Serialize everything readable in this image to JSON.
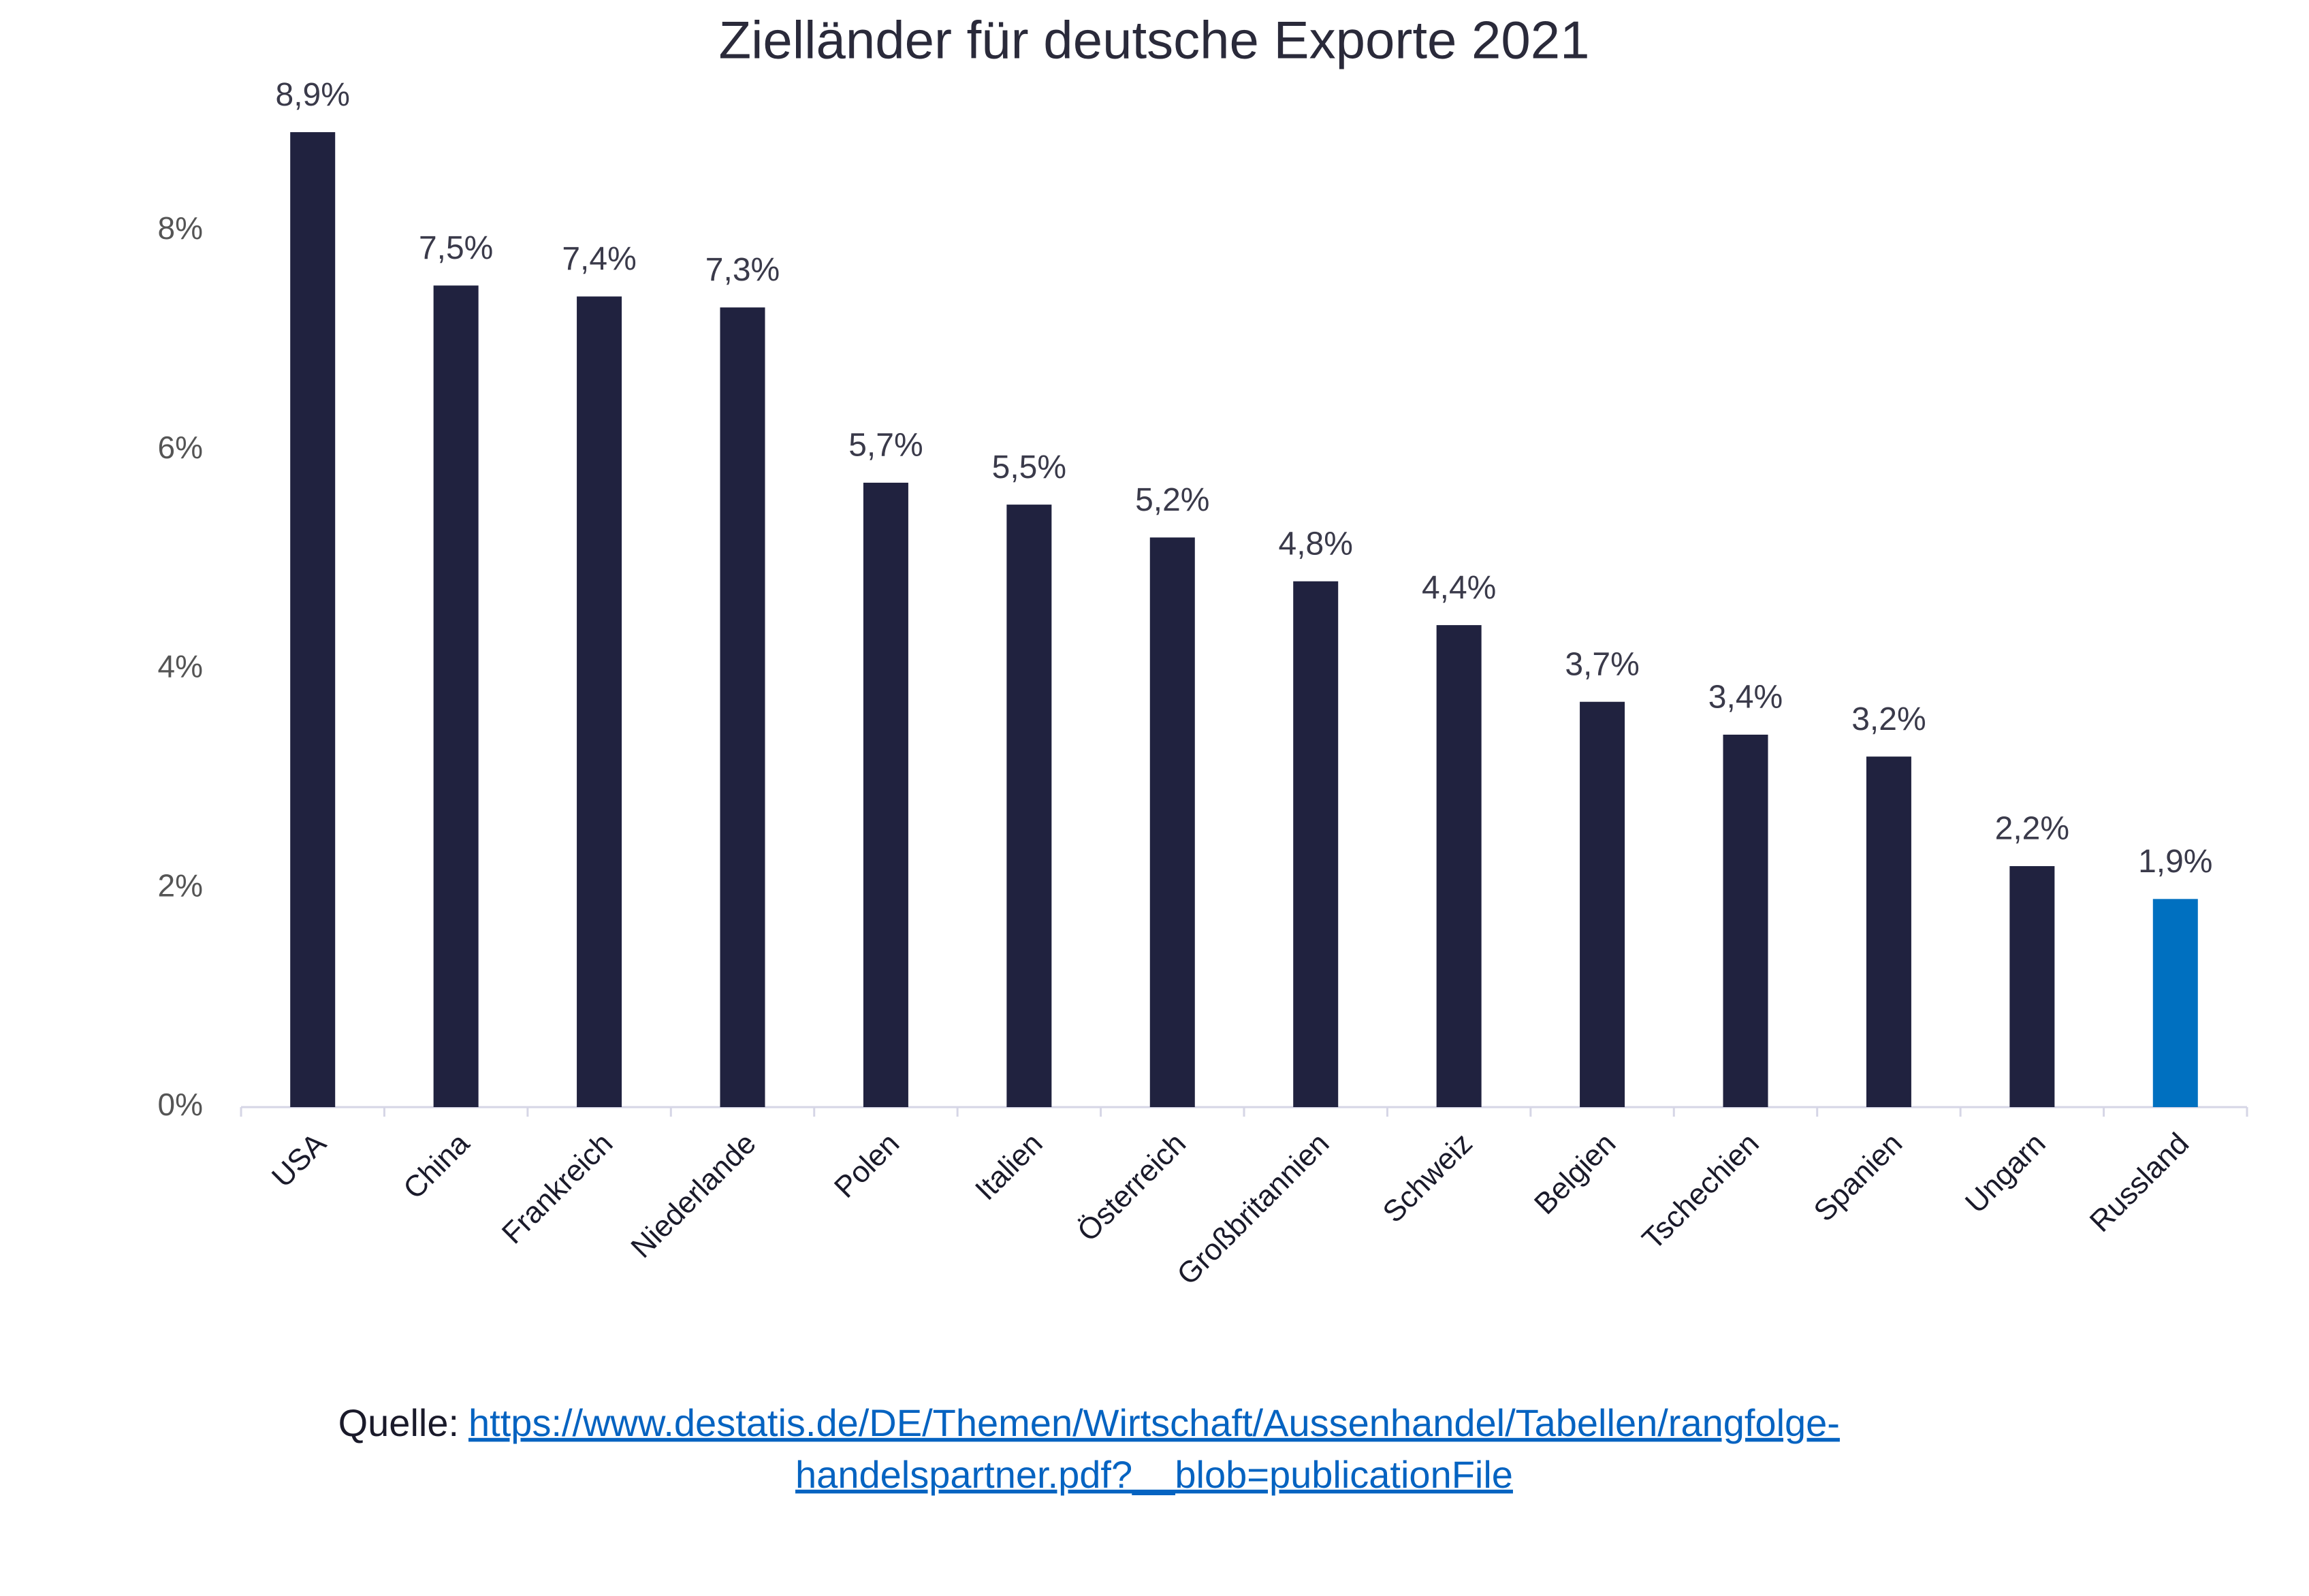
{
  "chart_data": {
    "type": "bar",
    "title": "Zielländer für deutsche Exporte 2021",
    "categories": [
      "USA",
      "China",
      "Frankreich",
      "Niederlande",
      "Polen",
      "Italien",
      "Österreich",
      "Großbritannien",
      "Schweiz",
      "Belgien",
      "Tschechien",
      "Spanien",
      "Ungarn",
      "Russland"
    ],
    "values": [
      8.9,
      7.5,
      7.4,
      7.3,
      5.7,
      5.5,
      5.2,
      4.8,
      4.4,
      3.7,
      3.4,
      3.2,
      2.2,
      1.9
    ],
    "value_labels": [
      "8,9%",
      "7,5%",
      "7,4%",
      "7,3%",
      "5,7%",
      "5,5%",
      "5,2%",
      "4,8%",
      "4,4%",
      "3,7%",
      "3,4%",
      "3,2%",
      "2,2%",
      "1,9%"
    ],
    "colors": [
      "#20223f",
      "#20223f",
      "#20223f",
      "#20223f",
      "#20223f",
      "#20223f",
      "#20223f",
      "#20223f",
      "#20223f",
      "#20223f",
      "#20223f",
      "#20223f",
      "#20223f",
      "#0070c0"
    ],
    "ylim": [
      0,
      9
    ],
    "yticks": [
      {
        "value": 0,
        "label": "0%"
      },
      {
        "value": 2,
        "label": "2%"
      },
      {
        "value": 4,
        "label": "4%"
      },
      {
        "value": 6,
        "label": "6%"
      },
      {
        "value": 8,
        "label": "8%"
      }
    ],
    "grid": false,
    "source": {
      "label": "Quelle:",
      "link": [
        "https://www.destatis.de/DE/Themen/Wirtschaft/Aussenhandel/Tabellen/rangfolge-",
        "handelspartner.pdf?__blob=publicationFile"
      ]
    }
  }
}
